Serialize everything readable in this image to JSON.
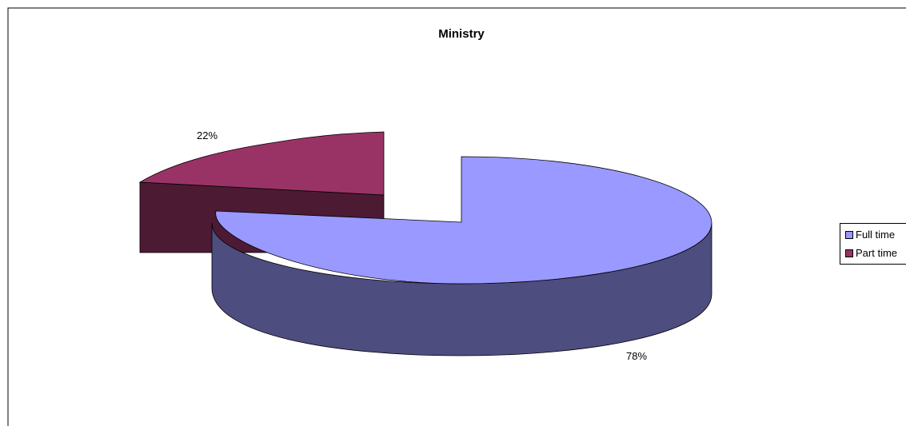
{
  "chart_data": {
    "type": "pie",
    "title": "Ministry",
    "style": "3d-exploded",
    "slices": [
      {
        "label": "Full time",
        "value": 78,
        "value_label": "78%",
        "color": "#9999ff",
        "side_color": "#4d4d80"
      },
      {
        "label": "Part time",
        "value": 22,
        "value_label": "22%",
        "color": "#993366",
        "side_color": "#4d1a33"
      }
    ],
    "legend": {
      "position": "right",
      "items": [
        {
          "label": "Full time",
          "color": "#9999ff"
        },
        {
          "label": "Part time",
          "color": "#993366"
        }
      ]
    }
  }
}
